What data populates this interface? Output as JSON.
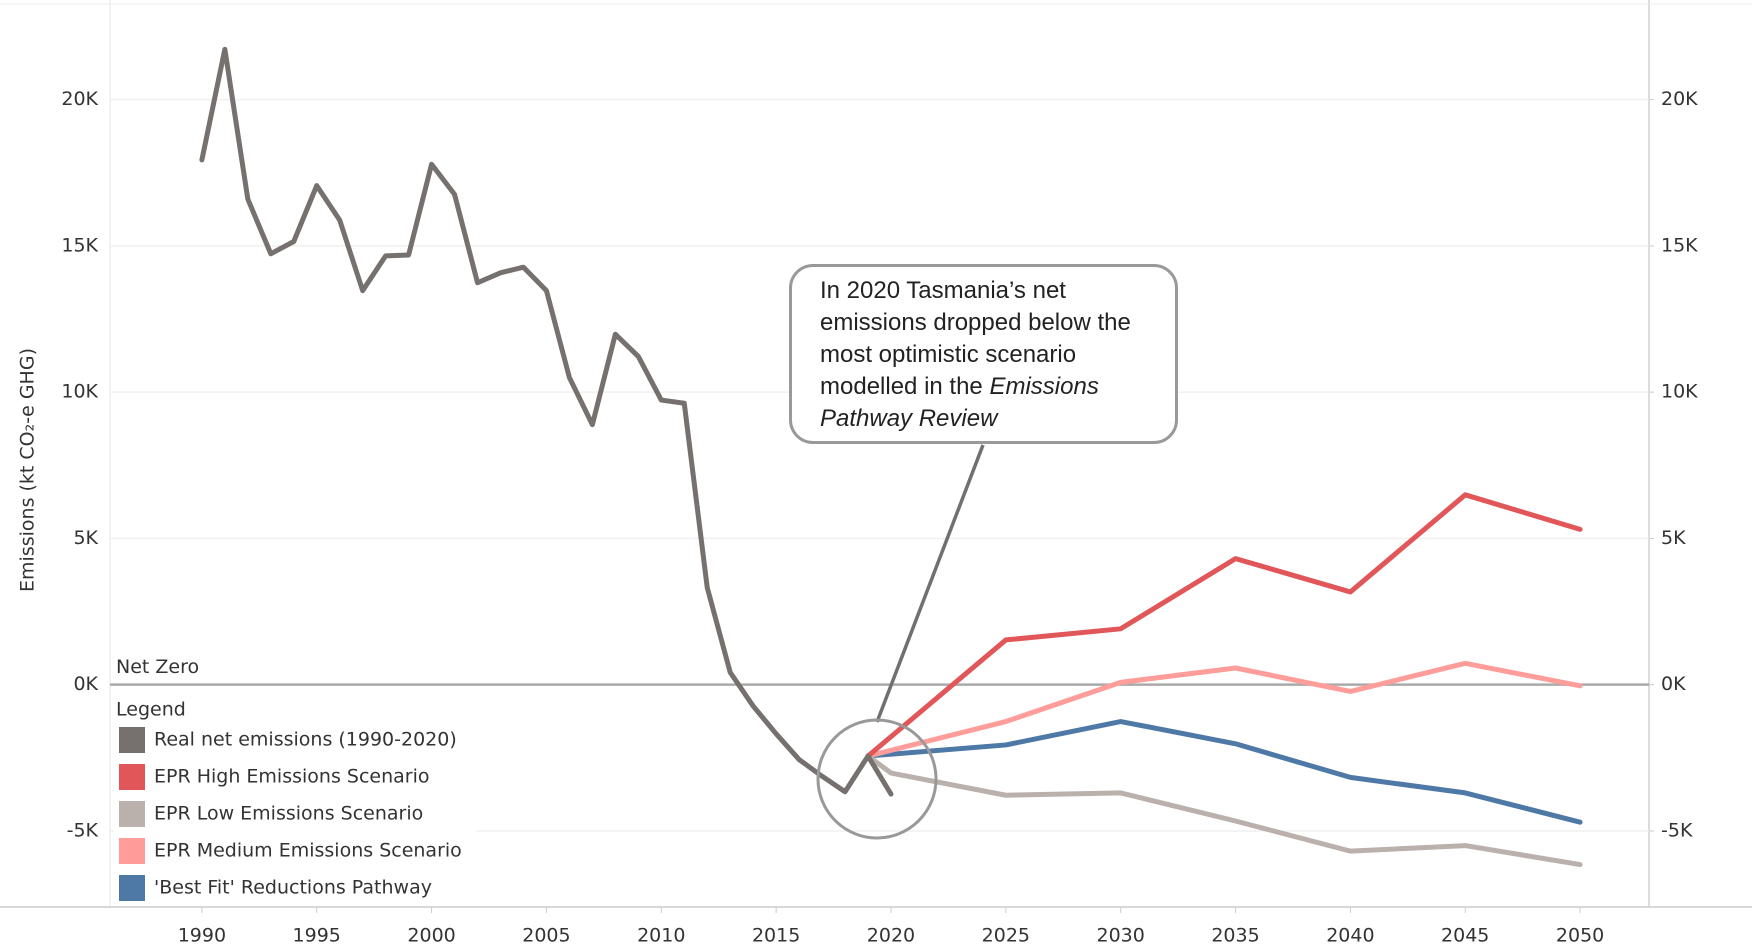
{
  "chart_data": {
    "type": "line",
    "y_label": "Emissions (kt CO₂-e GHG)",
    "xlim": [
      1986,
      2053
    ],
    "xticks": [
      1990,
      1995,
      2000,
      2005,
      2010,
      2015,
      2020,
      2025,
      2030,
      2035,
      2040,
      2045,
      2050
    ],
    "ylim": [
      -7600,
      23200
    ],
    "yticks": [
      {
        "value": -5000,
        "label": "-5K"
      },
      {
        "value": 0,
        "label": "0K"
      },
      {
        "value": 5000,
        "label": "5K"
      },
      {
        "value": 10000,
        "label": "10K"
      },
      {
        "value": 15000,
        "label": "15K"
      },
      {
        "value": 20000,
        "label": "20K"
      }
    ],
    "y2lim": [
      -7600,
      23200
    ],
    "y2ticks": [
      {
        "value": -5000,
        "label": "-5K"
      },
      {
        "value": 0,
        "label": "0K"
      },
      {
        "value": 5000,
        "label": "5K"
      },
      {
        "value": 10000,
        "label": "10K"
      },
      {
        "value": 15000,
        "label": "15K"
      },
      {
        "value": 20000,
        "label": "20K"
      }
    ],
    "grid": true,
    "reference_line": {
      "value": 0,
      "label": "Net Zero"
    },
    "legend_title": "Legend",
    "legend_position": "lower-left",
    "annotation": {
      "text": "In 2020 Tasmania’s net emissions dropped below the most optimistic scenario modelled in the",
      "emphasis": "Emissions Pathway Review"
    },
    "series": [
      {
        "name": "Real net emissions (1990-2020)",
        "color": "#76706f",
        "x": [
          1990,
          1991,
          1992,
          1993,
          1994,
          1995,
          1996,
          1997,
          1998,
          1999,
          2000,
          2001,
          2002,
          2003,
          2004,
          2005,
          2006,
          2007,
          2008,
          2009,
          2010,
          2011,
          2012,
          2013,
          2014,
          2015,
          2016,
          2017,
          2018,
          2019,
          2020
        ],
        "values": [
          17940,
          21720,
          16600,
          14730,
          15150,
          17060,
          15880,
          13470,
          14660,
          14690,
          17790,
          16760,
          13740,
          14080,
          14270,
          13470,
          10500,
          8890,
          11980,
          11220,
          9730,
          9620,
          3320,
          420,
          -730,
          -1680,
          -2560,
          -3130,
          -3660,
          -2440,
          -3740
        ]
      },
      {
        "name": "EPR High Emissions Scenario",
        "color": "#e15759",
        "x": [
          2019,
          2025,
          2030,
          2035,
          2040,
          2045,
          2050
        ],
        "values": [
          -2440,
          1530,
          1910,
          4310,
          3170,
          6490,
          5310
        ]
      },
      {
        "name": "EPR Low Emissions Scenario",
        "color": "#bab0ac",
        "x": [
          2019,
          2020,
          2025,
          2030,
          2035,
          2040,
          2045,
          2050
        ],
        "values": [
          -2440,
          -3020,
          -3780,
          -3700,
          -4660,
          -5690,
          -5500,
          -6150
        ]
      },
      {
        "name": "EPR Medium Emissions Scenario",
        "color": "#ff9d9a",
        "x": [
          2019,
          2025,
          2030,
          2035,
          2040,
          2045,
          2050
        ],
        "values": [
          -2440,
          -1260,
          80,
          570,
          -230,
          730,
          -40
        ]
      },
      {
        "name": "'Best Fit' Reductions Pathway",
        "color": "#4e79a7",
        "x": [
          2019,
          2025,
          2030,
          2035,
          2040,
          2045,
          2050
        ],
        "values": [
          -2440,
          -2060,
          -1260,
          -2020,
          -3170,
          -3700,
          -4700
        ]
      }
    ]
  }
}
